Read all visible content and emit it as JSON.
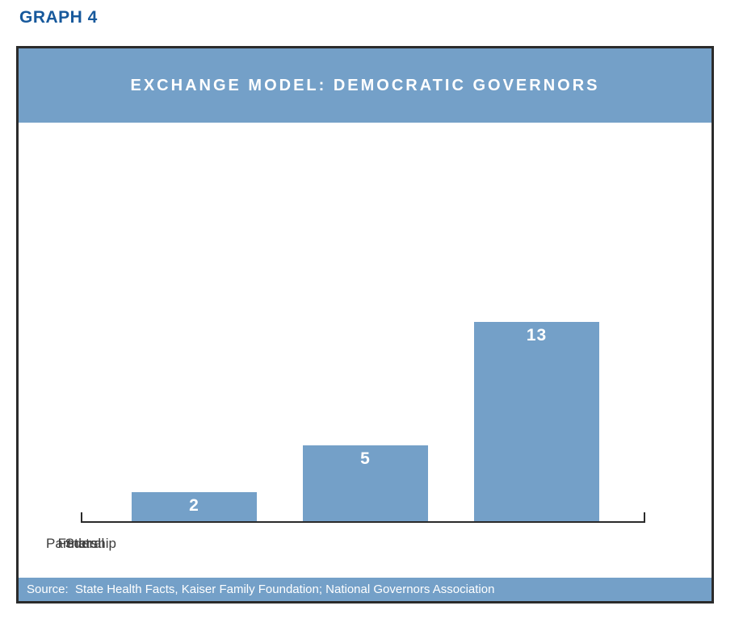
{
  "page": {
    "graph_label": "GRAPH 4"
  },
  "chart": {
    "title": "EXCHANGE MODEL: DEMOCRATIC GOVERNORS",
    "source": "Source:  State Health Facts, Kaiser Family Foundation; National Governors Association"
  },
  "chart_data": {
    "type": "bar",
    "title": "EXCHANGE MODEL: DEMOCRATIC GOVERNORS",
    "categories": [
      "Federal",
      "Partnership",
      "State"
    ],
    "values": [
      2,
      5,
      13
    ],
    "xlabel": "",
    "ylabel": "",
    "ylim": [
      0,
      13
    ],
    "grid": false,
    "legend": false,
    "value_labels_inside_bars": true,
    "bar_color": "#74a0c8",
    "value_label_color": "#ffffff"
  },
  "colors": {
    "accent_blue": "#74a0c8",
    "heading_blue": "#17599c",
    "border_dark": "#2b2b2b",
    "axis_label_gray": "#3d3d3d"
  }
}
